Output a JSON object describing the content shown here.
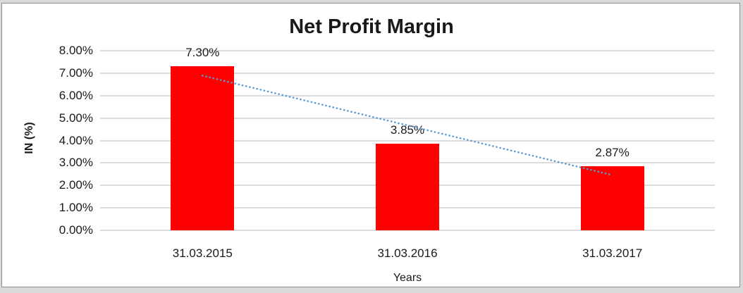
{
  "chart_data": {
    "type": "bar",
    "title": "Net Profit Margin",
    "xlabel": "Years",
    "ylabel": "IN (%)",
    "categories": [
      "31.03.2015",
      "31.03.2016",
      "31.03.2017"
    ],
    "values": [
      7.3,
      3.85,
      2.87
    ],
    "data_labels": [
      "7.30%",
      "3.85%",
      "2.87%"
    ],
    "ylim": [
      0,
      8
    ],
    "ytick_step": 1,
    "ytick_labels": [
      "0.00%",
      "1.00%",
      "2.00%",
      "3.00%",
      "4.00%",
      "5.00%",
      "6.00%",
      "7.00%",
      "8.00%"
    ],
    "grid": true,
    "legend": "none",
    "bar_color": "#ff0000",
    "gridline_color": "#dcdcdc",
    "trendline": {
      "fit": "linear",
      "style": "dotted",
      "color": "#5b9bd5",
      "endpoint_values_pct": [
        6.89,
        2.46
      ]
    }
  }
}
